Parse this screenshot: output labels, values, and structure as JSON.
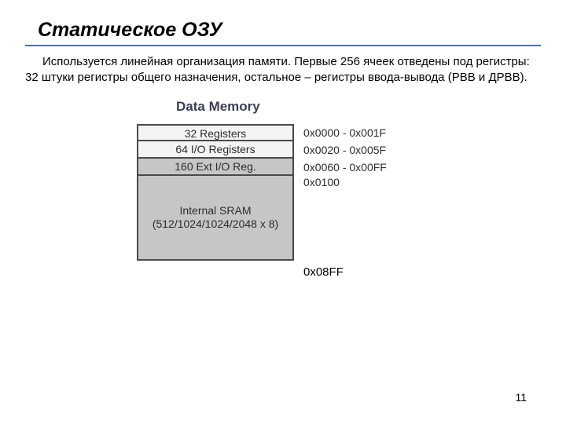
{
  "colors": {
    "rule": "#5070a8",
    "heading_text": "#3a3f55",
    "box_border": "#4a4a4a",
    "box_bg_light": "#f4f4f4",
    "box_bg_shaded": "#c6c6c6",
    "body_text": "#000000",
    "addr_text": "#2c2c2c"
  },
  "title": "Статическое ОЗУ",
  "paragraph": "Используется линейная организация памяти. Первые 256 ячеек отведены под регистры: 32 штуки регистры общего назначения, остальное – регистры ввода-вывода (РВВ и ДРВВ).",
  "diagram": {
    "heading": "Data Memory",
    "rows": [
      {
        "label": "32 Registers",
        "addr": "0x0000 - 0x001F",
        "shaded": false
      },
      {
        "label": "64 I/O Registers",
        "addr": "0x0020 - 0x005F",
        "shaded": false
      },
      {
        "label": "160 Ext I/O Reg.",
        "addr": "0x0060 - 0x00FF",
        "shaded": true
      }
    ],
    "sram": {
      "line1": "Internal SRAM",
      "line2": "(512/1024/1024/2048 x 8)",
      "addr_top": "0x0100"
    },
    "bottom_addr": "0x08FF"
  },
  "page_number": "11"
}
